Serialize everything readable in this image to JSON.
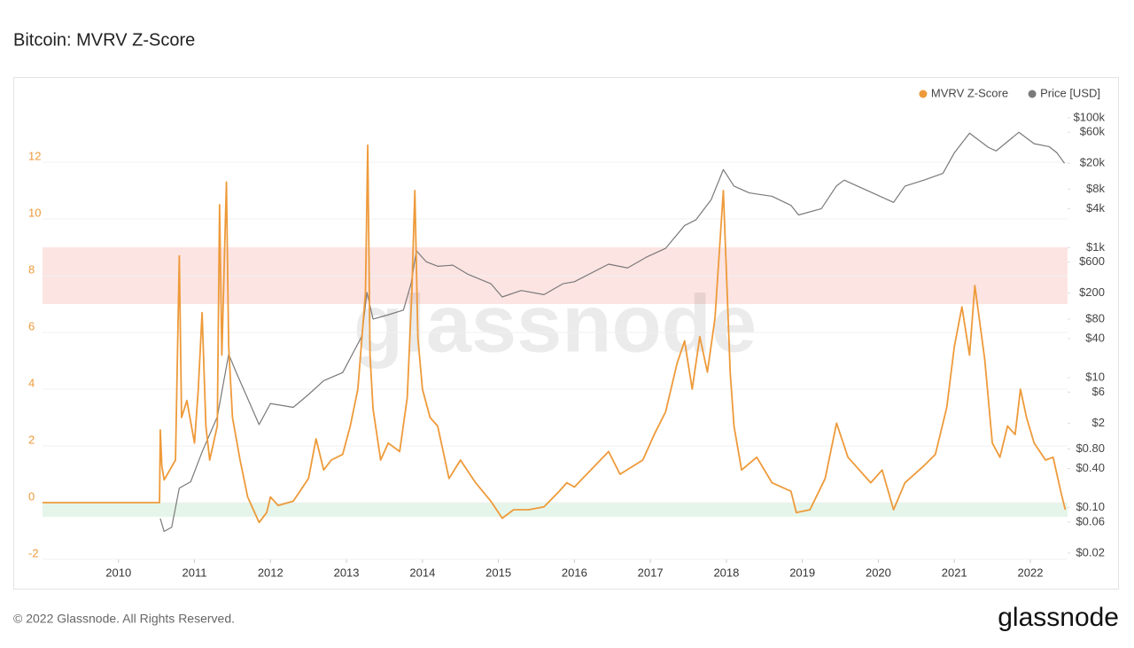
{
  "chart_data": {
    "type": "line",
    "title": "Bitcoin: MVRV Z-Score",
    "watermark": "glassnode",
    "xlim": [
      2009,
      2022.49
    ],
    "xticks": [
      2010,
      2011,
      2012,
      2013,
      2014,
      2015,
      2016,
      2017,
      2018,
      2019,
      2020,
      2021,
      2022
    ],
    "ylim": [
      -2,
      14
    ],
    "yticks": [
      -2,
      0,
      2,
      4,
      6,
      8,
      10,
      12
    ],
    "y2lim": [
      0.016,
      155000
    ],
    "y2scale": "log",
    "y2ticks": [
      {
        "value": 100000,
        "label": "$100k"
      },
      {
        "value": 60000,
        "label": "$60k"
      },
      {
        "value": 20000,
        "label": "$20k"
      },
      {
        "value": 8000,
        "label": "$8k"
      },
      {
        "value": 4000,
        "label": "$4k"
      },
      {
        "value": 1000,
        "label": "$1k"
      },
      {
        "value": 600,
        "label": "$600"
      },
      {
        "value": 200,
        "label": "$200"
      },
      {
        "value": 80,
        "label": "$80"
      },
      {
        "value": 40,
        "label": "$40"
      },
      {
        "value": 10,
        "label": "$10"
      },
      {
        "value": 6,
        "label": "$6"
      },
      {
        "value": 2,
        "label": "$2"
      },
      {
        "value": 0.8,
        "label": "$0.80"
      },
      {
        "value": 0.4,
        "label": "$0.40"
      },
      {
        "value": 0.1,
        "label": "$0.10"
      },
      {
        "value": 0.06,
        "label": "$0.06"
      },
      {
        "value": 0.02,
        "label": "$0.02"
      }
    ],
    "grid": true,
    "legend": "top-right",
    "bands": [
      {
        "from": 7,
        "to": 9,
        "color": "#fce4e2"
      },
      {
        "from": -0.5,
        "to": 0,
        "color": "#e5f5e9"
      }
    ],
    "series": [
      {
        "name": "MVRV Z-Score",
        "color": "#ee9a3a",
        "x": [
          2009.0,
          2010.54,
          2010.55,
          2010.57,
          2010.6,
          2010.75,
          2010.8,
          2010.83,
          2010.9,
          2011.0,
          2011.05,
          2011.1,
          2011.15,
          2011.2,
          2011.3,
          2011.33,
          2011.36,
          2011.42,
          2011.45,
          2011.5,
          2011.6,
          2011.7,
          2011.85,
          2011.95,
          2012.0,
          2012.1,
          2012.3,
          2012.5,
          2012.6,
          2012.7,
          2012.8,
          2012.95,
          2013.05,
          2013.15,
          2013.25,
          2013.28,
          2013.31,
          2013.35,
          2013.45,
          2013.55,
          2013.7,
          2013.8,
          2013.86,
          2013.9,
          2013.94,
          2014.0,
          2014.1,
          2014.2,
          2014.35,
          2014.5,
          2014.7,
          2014.9,
          2015.05,
          2015.2,
          2015.4,
          2015.6,
          2015.8,
          2015.9,
          2016.0,
          2016.45,
          2016.6,
          2016.9,
          2017.05,
          2017.2,
          2017.35,
          2017.45,
          2017.55,
          2017.65,
          2017.75,
          2017.85,
          2017.96,
          2018.05,
          2018.1,
          2018.2,
          2018.4,
          2018.6,
          2018.85,
          2018.92,
          2019.1,
          2019.3,
          2019.45,
          2019.6,
          2019.9,
          2020.05,
          2020.2,
          2020.35,
          2020.6,
          2020.75,
          2020.9,
          2021.0,
          2021.1,
          2021.2,
          2021.27,
          2021.4,
          2021.5,
          2021.6,
          2021.7,
          2021.8,
          2021.87,
          2021.95,
          2022.05,
          2022.2,
          2022.3,
          2022.4,
          2022.46
        ],
        "values": [
          0,
          0,
          2.56,
          1.3,
          0.8,
          1.5,
          8.7,
          3,
          3.6,
          2.1,
          4,
          6.7,
          2.7,
          1.5,
          2.7,
          10.5,
          5.2,
          11.3,
          5.5,
          3,
          1.5,
          0.2,
          -0.7,
          -0.35,
          0.2,
          -0.1,
          0.05,
          0.85,
          2.25,
          1.15,
          1.5,
          1.7,
          2.7,
          4,
          7.4,
          12.6,
          5.2,
          3.3,
          1.5,
          2.1,
          1.8,
          3.7,
          7.4,
          11,
          5.8,
          4,
          3,
          2.7,
          0.85,
          1.5,
          0.7,
          0.05,
          -0.55,
          -0.25,
          -0.25,
          -0.15,
          0.4,
          0.7,
          0.55,
          1.8,
          1,
          1.5,
          2.4,
          3.2,
          4.9,
          5.7,
          4,
          5.85,
          4.6,
          6.5,
          11,
          4.6,
          2.7,
          1.15,
          1.6,
          0.7,
          0.4,
          -0.35,
          -0.25,
          0.85,
          2.8,
          1.6,
          0.7,
          1.15,
          -0.25,
          0.7,
          1.3,
          1.7,
          3.35,
          5.5,
          6.9,
          5.2,
          7.65,
          5.05,
          2.1,
          1.6,
          2.7,
          2.4,
          4,
          3,
          2.1,
          1.5,
          1.6,
          0.4,
          -0.25
        ]
      },
      {
        "name": "Price [USD]",
        "color": "#7a7a7a",
        "axis": "y2",
        "x": [
          2010.55,
          2010.6,
          2010.7,
          2010.8,
          2010.95,
          2011.1,
          2011.3,
          2011.45,
          2011.55,
          2011.7,
          2011.85,
          2012.0,
          2012.3,
          2012.5,
          2012.7,
          2012.95,
          2013.2,
          2013.27,
          2013.35,
          2013.55,
          2013.75,
          2013.85,
          2013.92,
          2014.05,
          2014.2,
          2014.4,
          2014.6,
          2014.9,
          2015.05,
          2015.3,
          2015.6,
          2015.85,
          2016.0,
          2016.45,
          2016.7,
          2016.95,
          2017.2,
          2017.45,
          2017.6,
          2017.8,
          2017.96,
          2018.1,
          2018.3,
          2018.6,
          2018.85,
          2018.95,
          2019.25,
          2019.45,
          2019.55,
          2019.9,
          2020.2,
          2020.35,
          2020.6,
          2020.85,
          2021.0,
          2021.2,
          2021.45,
          2021.55,
          2021.85,
          2022.05,
          2022.25,
          2022.35,
          2022.45
        ],
        "values": [
          0.068,
          0.043,
          0.05,
          0.2,
          0.25,
          0.72,
          2.5,
          23,
          12,
          4.8,
          1.9,
          4,
          3.5,
          5.5,
          9,
          12,
          43,
          205,
          80,
          93,
          110,
          280,
          900,
          610,
          520,
          540,
          390,
          280,
          175,
          220,
          190,
          280,
          300,
          560,
          490,
          720,
          980,
          2200,
          2700,
          5500,
          16000,
          8900,
          7000,
          6200,
          4500,
          3200,
          4000,
          9000,
          11000,
          7200,
          5000,
          8900,
          11000,
          14000,
          29000,
          58000,
          35000,
          31000,
          60000,
          40000,
          36000,
          29000,
          20000
        ]
      }
    ]
  },
  "footer": {
    "copyright": "© 2022 Glassnode. All Rights Reserved.",
    "logo": "glassnode"
  }
}
